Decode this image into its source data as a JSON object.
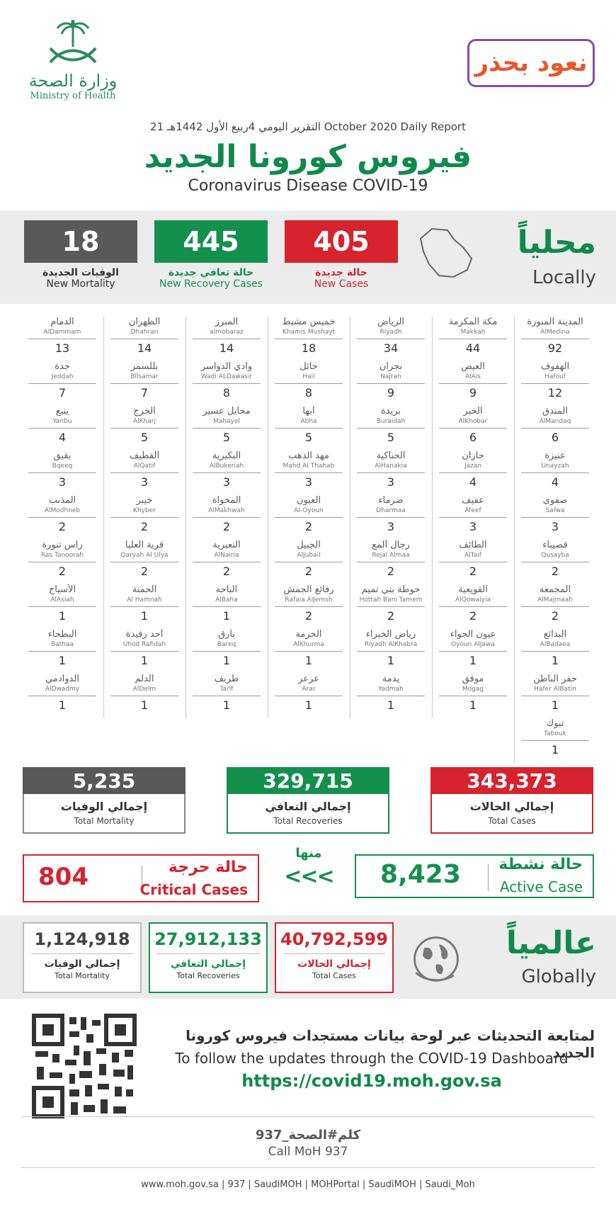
{
  "header": {
    "logo_ar": "وزارة الصحة",
    "logo_en": "Ministry of Health",
    "campaign": "نعود بحذر",
    "report_ar": "التقرير اليومي",
    "report_hijri": "4ربيع الأول 1442هـ",
    "report_en": "Daily Report",
    "report_date": "21 October 2020",
    "title_ar": "فيروس كورونا الجديد",
    "title_en": "Coronavirus Disease COVID-19"
  },
  "local": {
    "title_ar": "محلياً",
    "title_en": "Locally",
    "new_cases": {
      "value": "405",
      "ar": "حالة جديدة",
      "en": "New Cases"
    },
    "new_recovery": {
      "value": "445",
      "ar": "حالة تعافي جديدة",
      "en": "New Recovery Cases"
    },
    "new_mortality": {
      "value": "18",
      "ar": "الوفيات الجديدة",
      "en": "New Mortality"
    }
  },
  "cities": [
    [
      {
        "ar": "المدينة المنورة",
        "en": "AlMedina",
        "n": "92"
      },
      {
        "ar": "الهفوف",
        "en": "Hafouf",
        "n": "12"
      },
      {
        "ar": "المندق",
        "en": "AlMandaq",
        "n": "6"
      },
      {
        "ar": "عنيزة",
        "en": "Unayzah",
        "n": "4"
      },
      {
        "ar": "صفوى",
        "en": "Safwa",
        "n": "3"
      },
      {
        "ar": "قصيباء",
        "en": "Qusayba",
        "n": "2"
      },
      {
        "ar": "المجمعة",
        "en": "AlMajmaah",
        "n": "2"
      },
      {
        "ar": "البدائع",
        "en": "AlBadaea",
        "n": "1"
      },
      {
        "ar": "حفر الباطن",
        "en": "Hafer AlBatin",
        "n": "1"
      },
      {
        "ar": "تبوك",
        "en": "Tabouk",
        "n": "1"
      }
    ],
    [
      {
        "ar": "مكة المكرمة",
        "en": "Makkah",
        "n": "44"
      },
      {
        "ar": "العيص",
        "en": "AlAis",
        "n": "9"
      },
      {
        "ar": "الخبر",
        "en": "AlKhobar",
        "n": "6"
      },
      {
        "ar": "جازان",
        "en": "Jazan",
        "n": "4"
      },
      {
        "ar": "عفيف",
        "en": "Afeef",
        "n": "3"
      },
      {
        "ar": "الطائف",
        "en": "AlTaif",
        "n": "2"
      },
      {
        "ar": "القويعية",
        "en": "AlQowaiyia",
        "n": "2"
      },
      {
        "ar": "عيون الجواء",
        "en": "Oyoun AlJawa",
        "n": "1"
      },
      {
        "ar": "موقق",
        "en": "Mogag",
        "n": "1"
      }
    ],
    [
      {
        "ar": "الرياض",
        "en": "Riyadh",
        "n": "34"
      },
      {
        "ar": "نجران",
        "en": "Najran",
        "n": "9"
      },
      {
        "ar": "بريدة",
        "en": "Buraidah",
        "n": "5"
      },
      {
        "ar": "الحناكية",
        "en": "AlHanakia",
        "n": "3"
      },
      {
        "ar": "ضرماء",
        "en": "Dharmaa",
        "n": "3"
      },
      {
        "ar": "رجال ألمع",
        "en": "Rejal Almaa",
        "n": "2"
      },
      {
        "ar": "حوطة بني تميم",
        "en": "Hottah Bani Tamem",
        "n": "2"
      },
      {
        "ar": "رياض الخبراء",
        "en": "Riyadh AlKhabra",
        "n": "1"
      },
      {
        "ar": "يدمة",
        "en": "Yadmah",
        "n": "1"
      }
    ],
    [
      {
        "ar": "خميس مشيط",
        "en": "Khamis Mushayt",
        "n": "18"
      },
      {
        "ar": "حائل",
        "en": "Hail",
        "n": "8"
      },
      {
        "ar": "أبها",
        "en": "Abha",
        "n": "5"
      },
      {
        "ar": "مهد الذهب",
        "en": "Mahd Al Thahab",
        "n": "3"
      },
      {
        "ar": "العيون",
        "en": "Al-Oyoun",
        "n": "2"
      },
      {
        "ar": "الجبيل",
        "en": "AlJubail",
        "n": "2"
      },
      {
        "ar": "رفائع الجمش",
        "en": "Rafaia AlJemsh",
        "n": "2"
      },
      {
        "ar": "الخرمة",
        "en": "AlKhurma",
        "n": "1"
      },
      {
        "ar": "عرعر",
        "en": "Arar",
        "n": "1"
      }
    ],
    [
      {
        "ar": "المبرز",
        "en": "almobaraz",
        "n": "14"
      },
      {
        "ar": "وادي الدواسر",
        "en": "Wadi ALDawasir",
        "n": "8"
      },
      {
        "ar": "محايل عسير",
        "en": "Mahayel",
        "n": "5"
      },
      {
        "ar": "البكيرية",
        "en": "AlBukeriah",
        "n": "3"
      },
      {
        "ar": "المخواة",
        "en": "AlMakhwah",
        "n": "2"
      },
      {
        "ar": "النعيرية",
        "en": "AlNairia",
        "n": "2"
      },
      {
        "ar": "الباحة",
        "en": "AlBaha",
        "n": "1"
      },
      {
        "ar": "بارق",
        "en": "Bareq",
        "n": "1"
      },
      {
        "ar": "طريف",
        "en": "Tarif",
        "n": "1"
      }
    ],
    [
      {
        "ar": "الظهران",
        "en": "Dhahran",
        "n": "14"
      },
      {
        "ar": "بللسمر",
        "en": "Bllsamar",
        "n": "7"
      },
      {
        "ar": "الخرج",
        "en": "AlKharj",
        "n": "5"
      },
      {
        "ar": "القطيف",
        "en": "AlQatif",
        "n": "3"
      },
      {
        "ar": "خيبر",
        "en": "Khyber",
        "n": "2"
      },
      {
        "ar": "قرية العليا",
        "en": "Qaryah Al Ulya",
        "n": "2"
      },
      {
        "ar": "الحمنة",
        "en": "Al Hamnah",
        "n": "1"
      },
      {
        "ar": "أحد رفيدة",
        "en": "Uhod Rafidah",
        "n": "1"
      },
      {
        "ar": "الدلم",
        "en": "AlDelm",
        "n": "1"
      }
    ],
    [
      {
        "ar": "الدمام",
        "en": "AlDammam",
        "n": "13"
      },
      {
        "ar": "جدة",
        "en": "Jeddah",
        "n": "7"
      },
      {
        "ar": "ينبع",
        "en": "Yanbu",
        "n": "4"
      },
      {
        "ar": "بقيق",
        "en": "Bqeeq",
        "n": "3"
      },
      {
        "ar": "المذنب",
        "en": "AlModhneb",
        "n": "2"
      },
      {
        "ar": "راس تنورة",
        "en": "Ras Tanoorah",
        "n": "2"
      },
      {
        "ar": "الأسياح",
        "en": "AlAsiah",
        "n": "1"
      },
      {
        "ar": "البطحاء",
        "en": "Bathaa",
        "n": "1"
      },
      {
        "ar": "الدوادمي",
        "en": "AlDwadmy",
        "n": "1"
      }
    ]
  ],
  "totals": {
    "cases": {
      "value": "343,373",
      "ar": "إجمالي الحالات",
      "en": "Total Cases"
    },
    "recoveries": {
      "value": "329,715",
      "ar": "إجمالي التعافي",
      "en": "Total Recoveries"
    },
    "mortality": {
      "value": "5,235",
      "ar": "إجمالي الوفيات",
      "en": "Total Mortality"
    }
  },
  "active": {
    "value": "8,423",
    "ar": "حالة نشطة",
    "en": "Active Case"
  },
  "critical": {
    "value": "804",
    "ar": "حالة حرجة",
    "en": "Critical Cases"
  },
  "of_which": {
    "ar": "منها",
    "arrows": "<<<"
  },
  "global": {
    "title_ar": "عالمياً",
    "title_en": "Globally",
    "cases": {
      "value": "40,792,599",
      "ar": "إجمالي الحالات",
      "en": "Total Cases"
    },
    "recoveries": {
      "value": "27,912,133",
      "ar": "إجمالي التعافي",
      "en": "Total Recoveries"
    },
    "mortality": {
      "value": "1,124,918",
      "ar": "إجمالي الوفيات",
      "en": "Total Mortality"
    }
  },
  "footer": {
    "follow_ar": "لمتابعة التحديثات عبر لوحة بيانات مستجدات فيروس كورونا الجديد",
    "follow_en": "To follow the updates through the COVID-19 Dashboard",
    "url": "https://covid19.moh.gov.sa",
    "call_ar": "كلم#الصحة_937",
    "call_en": "Call MoH 937",
    "socials": "www.moh.gov.sa | 937 | SaudiMOH | MOHPortal | SaudiMOH | Saudi_Moh"
  },
  "colors": {
    "red": "#d6232d",
    "green": "#14904e",
    "gray": "#595959",
    "band": "#ececec"
  }
}
